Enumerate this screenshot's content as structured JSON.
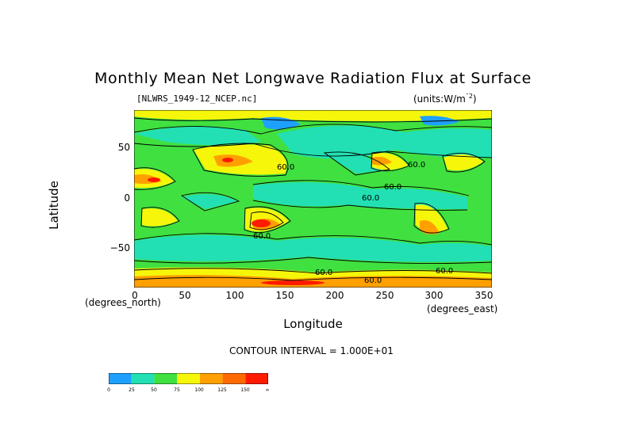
{
  "chart_data": {
    "type": "heatmap",
    "title": "Monthly Mean Net Longwave Radiation Flux at Surface",
    "file_label": "[NLWRS_1949-12_NCEP.nc]",
    "units_label": "(units:W/m^2)",
    "xlabel": "Longitude",
    "ylabel": "Latitude",
    "x_unit_label": "(degrees_east)",
    "y_unit_label": "(degrees_north)",
    "xlim": [
      0,
      360
    ],
    "ylim": [
      -90,
      90
    ],
    "x_ticks": [
      "0",
      "50",
      "100",
      "150",
      "200",
      "250",
      "300",
      "350"
    ],
    "y_ticks": [
      "50",
      "0",
      "−50"
    ],
    "contour_interval": "CONTOUR INTERVAL = 1.000E+01",
    "contour_labels": [
      "60.0",
      "60.0",
      "60.0",
      "60.0",
      "60.0",
      "60.0",
      "60.0",
      "60.0"
    ],
    "colorbar": {
      "ticks": [
        "0",
        "25",
        "50",
        "75",
        "100",
        "125",
        "150",
        "∞"
      ],
      "colors": [
        "#1ea0ff",
        "#22e0b4",
        "#40e040",
        "#f6f60a",
        "#ffa000",
        "#ff6a00",
        "#ff1a00"
      ]
    },
    "grid": false
  }
}
